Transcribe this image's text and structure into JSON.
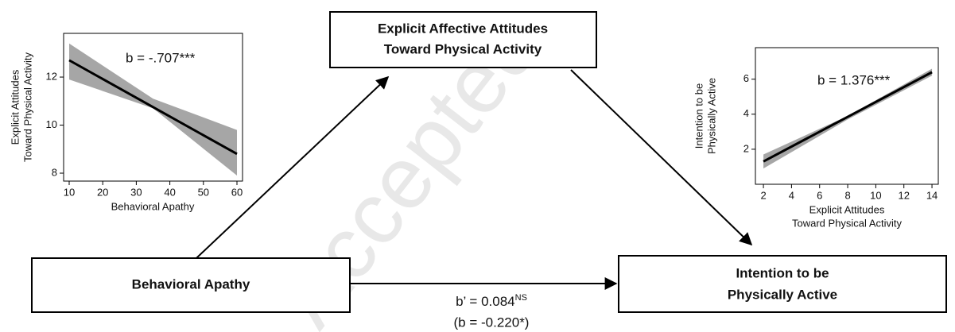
{
  "nodes": [
    {
      "lines": [
        "Explicit Affective Attitudes",
        "Toward Physical Activity"
      ]
    },
    {
      "lines": [
        "Behavioral Apathy"
      ]
    },
    {
      "lines": [
        "Intention to be",
        "Physically Active"
      ]
    }
  ],
  "direct_effect": {
    "label": "b’ = 0.084",
    "superscript": "NS",
    "total": "(b = -0.220*)"
  },
  "watermark": "Accepted",
  "chart_data": [
    {
      "type": "line",
      "annotation": "b = -.707***",
      "xlabel": [
        "Behavioral Apathy"
      ],
      "ylabel": [
        "Explicit Attitudes",
        "Toward Physical Activity"
      ],
      "xlim": [
        8.34,
        61.66
      ],
      "xticks": [
        10,
        20,
        30,
        40,
        50,
        60
      ],
      "ylim": [
        7.67,
        13.82
      ],
      "yticks": [
        8,
        10,
        12
      ],
      "color": "#000000",
      "band_color": "#a6a6a6",
      "x": [
        10,
        60
      ],
      "values": [
        12.7,
        8.8
      ],
      "band": {
        "x": [
          10,
          35,
          60
        ],
        "lower": [
          11.9,
          10.7,
          7.9
        ],
        "upper": [
          13.4,
          11.1,
          9.8
        ]
      }
    },
    {
      "type": "line",
      "annotation": "b = 1.376***",
      "xlabel": [
        "Explicit Attitudes",
        "Toward Physical Activity"
      ],
      "ylabel": [
        "Intention to be",
        "Physically Active"
      ],
      "xlim": [
        1.43,
        14.45
      ],
      "xticks": [
        2,
        4,
        6,
        8,
        10,
        12,
        14
      ],
      "ylim": [
        0,
        7.8
      ],
      "yticks": [
        2,
        4,
        6
      ],
      "color": "#000000",
      "band_color": "#a6a6a6",
      "x": [
        2,
        14
      ],
      "values": [
        1.3,
        6.4
      ],
      "band": {
        "x": [
          2,
          8,
          14
        ],
        "lower": [
          0.9,
          3.7,
          6.2
        ],
        "upper": [
          1.7,
          3.9,
          6.6
        ]
      }
    }
  ]
}
